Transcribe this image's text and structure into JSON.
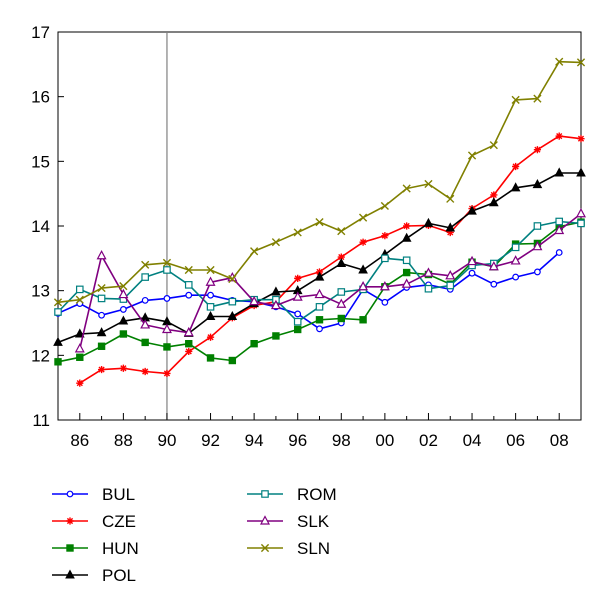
{
  "chart_data": {
    "type": "line",
    "title": "",
    "xlabel": "",
    "ylabel": "",
    "x": [
      1985,
      1986,
      1987,
      1988,
      1989,
      1990,
      1991,
      1992,
      1993,
      1994,
      1995,
      1996,
      1997,
      1998,
      1999,
      2000,
      2001,
      2002,
      2003,
      2004,
      2005,
      2006,
      2007,
      2008,
      2009
    ],
    "xlim": [
      1985,
      2009
    ],
    "ylim": [
      11,
      17
    ],
    "x_ticks": [
      1986,
      1988,
      1990,
      1992,
      1994,
      1996,
      1998,
      2000,
      2002,
      2004,
      2006,
      2008
    ],
    "x_tick_labels": [
      "86",
      "88",
      "90",
      "92",
      "94",
      "96",
      "98",
      "00",
      "02",
      "04",
      "06",
      "08"
    ],
    "y_ticks": [
      11,
      12,
      13,
      14,
      15,
      16,
      17
    ],
    "y_tick_labels": [
      "11",
      "12",
      "13",
      "14",
      "15",
      "16",
      "17"
    ],
    "reference_line_x": 1990,
    "grid": false,
    "legend_position": "bottom",
    "series": [
      {
        "name": "BUL",
        "color": "#0000ff",
        "marker": "circle",
        "values": [
          12.65,
          12.8,
          12.62,
          12.71,
          12.85,
          12.88,
          12.93,
          12.93,
          12.85,
          12.83,
          12.75,
          12.64,
          12.41,
          12.5,
          13.02,
          12.82,
          13.05,
          13.09,
          13.02,
          13.27,
          13.1,
          13.21,
          13.29,
          13.59,
          null
        ]
      },
      {
        "name": "CZE",
        "color": "#ff0000",
        "marker": "star",
        "values": [
          null,
          11.57,
          11.78,
          11.8,
          11.75,
          11.72,
          12.06,
          12.28,
          12.58,
          12.77,
          12.83,
          13.19,
          13.29,
          13.52,
          13.75,
          13.85,
          14.0,
          14.01,
          13.9,
          14.27,
          14.48,
          14.92,
          15.18,
          15.39,
          15.35
        ]
      },
      {
        "name": "HUN",
        "color": "#008000",
        "marker": "square",
        "values": [
          11.9,
          11.97,
          12.14,
          12.33,
          12.2,
          12.13,
          12.18,
          11.96,
          11.92,
          12.18,
          12.3,
          12.4,
          12.55,
          12.57,
          12.55,
          13.06,
          13.28,
          13.25,
          13.1,
          13.44,
          13.37,
          13.72,
          13.73,
          13.99,
          14.06
        ]
      },
      {
        "name": "POL",
        "color": "#000000",
        "marker": "triangle-filled",
        "values": [
          12.2,
          12.33,
          12.35,
          12.53,
          12.58,
          12.52,
          12.34,
          12.6,
          12.6,
          12.8,
          12.98,
          13.0,
          13.21,
          13.42,
          13.32,
          13.56,
          13.81,
          14.04,
          13.97,
          14.23,
          14.36,
          14.59,
          14.64,
          14.82,
          14.82
        ]
      },
      {
        "name": "ROM",
        "color": "#008080",
        "marker": "square-open",
        "values": [
          12.67,
          13.02,
          12.88,
          12.87,
          13.21,
          13.32,
          13.09,
          12.75,
          12.83,
          12.86,
          12.86,
          12.52,
          12.75,
          12.98,
          13.02,
          13.5,
          13.47,
          13.03,
          13.08,
          13.39,
          13.42,
          13.67,
          14.0,
          14.07,
          14.04
        ]
      },
      {
        "name": "SLK",
        "color": "#800080",
        "marker": "triangle-open",
        "values": [
          null,
          12.1,
          13.54,
          12.94,
          12.47,
          12.4,
          12.35,
          13.13,
          13.2,
          12.83,
          12.77,
          12.9,
          12.94,
          12.79,
          13.06,
          13.06,
          13.1,
          13.27,
          13.23,
          13.45,
          13.37,
          13.46,
          13.68,
          13.93,
          14.19
        ]
      },
      {
        "name": "SLN",
        "color": "#808000",
        "marker": "x",
        "values": [
          12.82,
          12.86,
          13.04,
          13.07,
          13.4,
          13.43,
          13.32,
          13.32,
          13.18,
          13.61,
          13.75,
          13.9,
          14.06,
          13.92,
          14.13,
          14.31,
          14.58,
          14.65,
          14.42,
          15.09,
          15.25,
          15.95,
          15.97,
          16.54,
          16.53
        ]
      }
    ]
  }
}
